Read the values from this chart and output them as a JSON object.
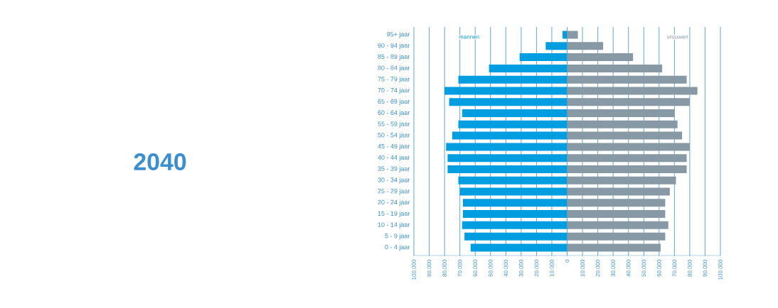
{
  "chart_data": {
    "type": "bar",
    "orientation": "horizontal",
    "title": "2040",
    "categories": [
      "95+ jaar",
      "90 - 94 jaar",
      "85 - 89 jaar",
      "80 - 84 jaar",
      "75 - 79 jaar",
      "70 - 74 jaar",
      "65 - 69 jaar",
      "60 - 64 jaar",
      "55 - 59 jaar",
      "50 - 54 jaar",
      "45 - 49 jaar",
      "40 - 44 jaar",
      "35 - 39 jaar",
      "30 - 34 jaar",
      "25 - 29 jaar",
      "20 - 24 jaar",
      "15 - 19 jaar",
      "10 - 14 jaar",
      "5 - 9 jaar",
      "0 - 4 jaar"
    ],
    "series": [
      {
        "name": "mannen",
        "color": "#009ee0",
        "values": [
          -3000,
          -14000,
          -31000,
          -51000,
          -71000,
          -80000,
          -77000,
          -68500,
          -71000,
          -75000,
          -79000,
          -78000,
          -78000,
          -71000,
          -70000,
          -68000,
          -68000,
          -68500,
          -67000,
          -63000
        ]
      },
      {
        "name": "vrouwen",
        "color": "#8799a4",
        "values": [
          7000,
          23500,
          43000,
          62000,
          78000,
          85000,
          80000,
          70000,
          72000,
          75000,
          80000,
          78000,
          78000,
          71000,
          67000,
          64000,
          64000,
          66000,
          64000,
          61000
        ]
      }
    ],
    "xlim": [
      -100000,
      100000
    ],
    "xticks": [
      {
        "value": -100000,
        "label": "100.000"
      },
      {
        "value": -90000,
        "label": "90.000"
      },
      {
        "value": -80000,
        "label": "80.000"
      },
      {
        "value": -70000,
        "label": "70.000"
      },
      {
        "value": -60000,
        "label": "60.000"
      },
      {
        "value": -50000,
        "label": "50.000"
      },
      {
        "value": -40000,
        "label": "40.000"
      },
      {
        "value": -30000,
        "label": "30.000"
      },
      {
        "value": -20000,
        "label": "20.000"
      },
      {
        "value": -10000,
        "label": "10.000"
      },
      0,
      {
        "value": 10000,
        "label": "10.000"
      },
      {
        "value": 20000,
        "label": "20.000"
      },
      {
        "value": 30000,
        "label": "30.000"
      },
      {
        "value": 40000,
        "label": "40.000"
      },
      {
        "value": 50000,
        "label": "50.000"
      },
      {
        "value": 60000,
        "label": "60.000"
      },
      {
        "value": 70000,
        "label": "70.000"
      },
      {
        "value": 80000,
        "label": "80.000"
      },
      {
        "value": 90000,
        "label": "90.000"
      },
      {
        "value": 100000,
        "label": "100.000"
      }
    ],
    "grid": "x",
    "legend": false,
    "stacked": true
  }
}
